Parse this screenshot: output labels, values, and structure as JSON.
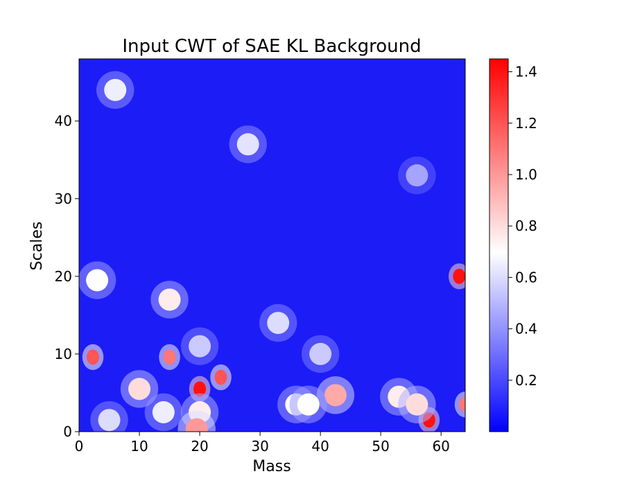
{
  "chart_data": {
    "type": "heatmap",
    "title": "Input CWT of SAE KL Background",
    "xlabel": "Mass",
    "ylabel": "Scales",
    "xlim": [
      0,
      64
    ],
    "ylim": [
      0,
      48
    ],
    "xticks": [
      "0",
      "10",
      "20",
      "30",
      "40",
      "50",
      "60"
    ],
    "yticks": [
      "0",
      "10",
      "20",
      "30",
      "40"
    ],
    "colormap": "bwr",
    "color_range": [
      0.0,
      1.45
    ],
    "colorbar_ticks": [
      "0.2",
      "0.4",
      "0.6",
      "0.8",
      "1.0",
      "1.2",
      "1.4"
    ],
    "grid": false,
    "features": [
      {
        "x": 6,
        "y": 44,
        "value": 0.65
      },
      {
        "x": 28,
        "y": 37,
        "value": 0.62
      },
      {
        "x": 56,
        "y": 33,
        "value": 0.45
      },
      {
        "x": 3,
        "y": 19.5,
        "value": 0.7
      },
      {
        "x": 15,
        "y": 17,
        "value": 0.75
      },
      {
        "x": 20,
        "y": 11,
        "value": 0.55
      },
      {
        "x": 33,
        "y": 14,
        "value": 0.6
      },
      {
        "x": 40,
        "y": 10,
        "value": 0.55
      },
      {
        "x": 63,
        "y": 20,
        "value": 1.4
      },
      {
        "x": 2.3,
        "y": 9.6,
        "value": 1.2
      },
      {
        "x": 15,
        "y": 9.6,
        "value": 1.1
      },
      {
        "x": 20,
        "y": 5.5,
        "value": 1.4
      },
      {
        "x": 23.5,
        "y": 7,
        "value": 1.2
      },
      {
        "x": 10,
        "y": 5.5,
        "value": 0.8
      },
      {
        "x": 42.5,
        "y": 4.7,
        "value": 0.95
      },
      {
        "x": 58,
        "y": 1.5,
        "value": 1.4
      },
      {
        "x": 64,
        "y": 3.5,
        "value": 1.1
      },
      {
        "x": 53,
        "y": 4.5,
        "value": 0.75
      },
      {
        "x": 56,
        "y": 3.5,
        "value": 0.8
      },
      {
        "x": 36,
        "y": 3.5,
        "value": 0.7
      },
      {
        "x": 38,
        "y": 3.5,
        "value": 0.7
      },
      {
        "x": 20,
        "y": 2.5,
        "value": 0.75
      },
      {
        "x": 19.5,
        "y": 0.3,
        "value": 1.0
      },
      {
        "x": 14,
        "y": 2.5,
        "value": 0.65
      },
      {
        "x": 5,
        "y": 1.5,
        "value": 0.6
      }
    ]
  }
}
